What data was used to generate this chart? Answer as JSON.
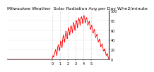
{
  "title": "Milwaukee Weather  Solar Radiation Avg per Day W/m2/minute",
  "line_color": "#ff0000",
  "background_color": "#ffffff",
  "y_values": [
    0.0,
    0.0,
    0.0,
    0.0,
    0.0,
    0.0,
    0.0,
    0.0,
    0.0,
    0.0,
    0.0,
    0.0,
    0.0,
    0.0,
    0.0,
    0.0,
    0.0,
    0.0,
    0.0,
    0.0,
    0.0,
    0.0,
    0.0,
    0.0,
    0.0,
    0.0,
    0.0,
    0.0,
    0.0,
    0.0,
    0.0,
    0.0,
    0.0,
    0.0,
    0.0,
    0.0,
    0.0,
    0.0,
    0.0,
    0.0,
    0.0,
    0.0,
    0.0,
    0.0,
    0.0,
    0.0,
    0.0,
    0.0,
    0.0,
    0.0,
    0.0,
    0.0,
    0.0,
    0.0,
    0.0,
    0.0,
    0.0,
    0.0,
    0.0,
    0.0,
    0.0,
    0.0,
    0.0,
    0.0,
    0.0,
    0.0,
    0.0,
    0.0,
    0.0,
    0.0,
    3.0,
    8.0,
    5.0,
    10.0,
    15.0,
    20.0,
    14.0,
    8.0,
    22.0,
    30.0,
    25.0,
    18.0,
    28.0,
    38.0,
    32.0,
    24.0,
    40.0,
    50.0,
    44.0,
    35.0,
    48.0,
    58.0,
    52.0,
    43.0,
    56.0,
    65.0,
    60.0,
    50.0,
    62.0,
    70.0,
    64.0,
    55.0,
    68.0,
    76.0,
    70.0,
    60.0,
    72.0,
    80.0,
    75.0,
    65.0,
    78.0,
    85.0,
    80.0,
    70.0,
    82.0,
    88.0,
    84.0,
    74.0,
    85.0,
    90.0,
    85.0,
    75.0,
    82.0,
    86.0,
    80.0,
    70.0,
    74.0,
    78.0,
    72.0,
    62.0,
    66.0,
    70.0,
    64.0,
    54.0,
    58.0,
    62.0,
    55.0,
    45.0,
    48.0,
    52.0,
    46.0,
    36.0,
    38.0,
    42.0,
    36.0,
    26.0,
    28.0,
    32.0,
    26.0,
    18.0,
    18.0,
    22.0,
    16.0,
    10.0,
    8.0,
    12.0,
    6.0,
    2.0
  ],
  "ylim": [
    0,
    100
  ],
  "yticks": [
    0,
    20,
    40,
    60,
    80,
    100
  ],
  "ytick_labels": [
    "0",
    "20",
    "40",
    "60",
    "80",
    "100"
  ],
  "grid_color": "#c0c0c0",
  "grid_positions": [
    70,
    82,
    94,
    106,
    118,
    130
  ],
  "title_fontsize": 4.5,
  "axis_fontsize": 3.5,
  "line_width": 0.7,
  "spine_color": "#000000"
}
